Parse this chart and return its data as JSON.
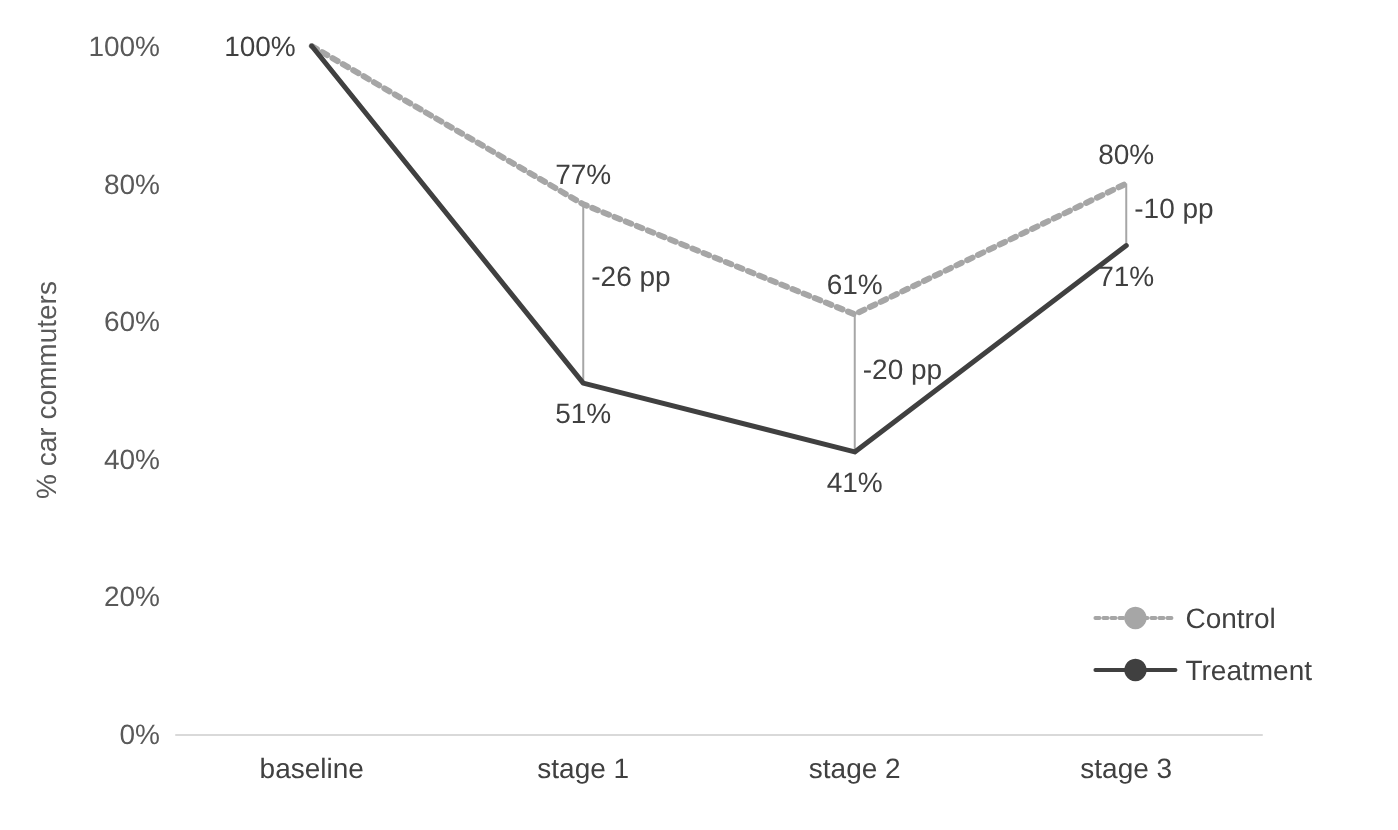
{
  "chart_data": {
    "type": "line",
    "ylabel": "% car commuters",
    "categories": [
      "baseline",
      "stage 1",
      "stage 2",
      "stage 3"
    ],
    "series": [
      {
        "name": "Control",
        "color": "#a6a6a6",
        "line_style": "dotted",
        "values": [
          100,
          77,
          61,
          80
        ],
        "value_labels": [
          null,
          "77%",
          "61%",
          "80%"
        ],
        "errors": [
          null,
          [
            51,
            77
          ],
          [
            41,
            61
          ],
          [
            71,
            80
          ]
        ]
      },
      {
        "name": "Treatment",
        "color": "#404040",
        "line_style": "solid",
        "values": [
          100,
          51,
          41,
          71
        ],
        "value_labels": [
          "100%",
          "51%",
          "41%",
          "71%"
        ]
      }
    ],
    "ylim": [
      0,
      100
    ],
    "yticks": [
      {
        "value": 0,
        "label": "0%"
      },
      {
        "value": 20,
        "label": "20%"
      },
      {
        "value": 40,
        "label": "40%"
      },
      {
        "value": 60,
        "label": "60%"
      },
      {
        "value": 80,
        "label": "80%"
      },
      {
        "value": 100,
        "label": "100%"
      }
    ],
    "annotations": [
      "-26 pp",
      "-20 pp",
      "-10 pp"
    ],
    "grid": false,
    "legend": "bottom right",
    "marker": "none"
  }
}
